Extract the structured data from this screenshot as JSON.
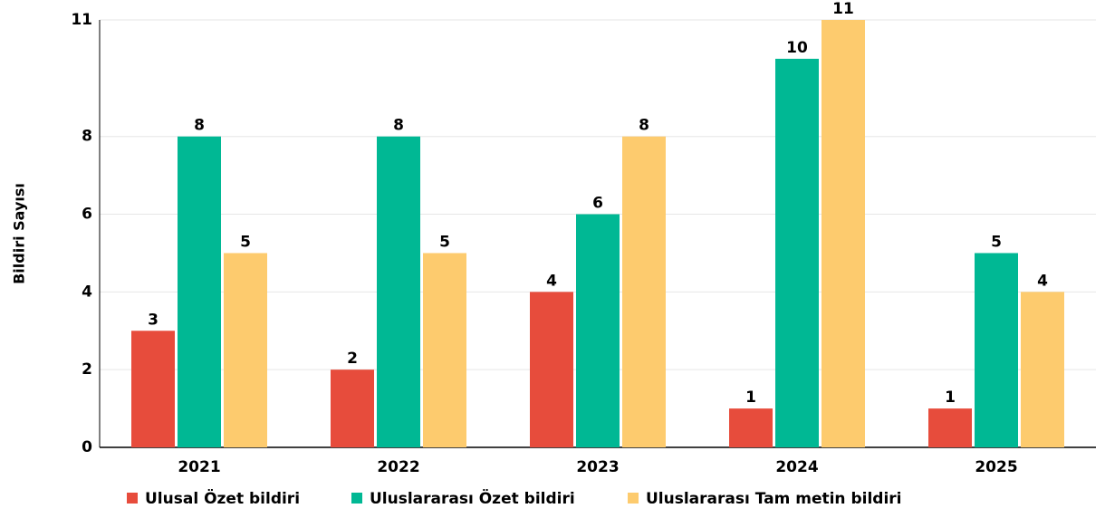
{
  "chart_data": {
    "type": "bar",
    "y_label": "Bildiri Sayısı",
    "categories": [
      "2021",
      "2022",
      "2023",
      "2024",
      "2025"
    ],
    "series": [
      {
        "name": "Ulusal Özet bildiri",
        "color": "#e74c3c",
        "values": [
          3,
          2,
          4,
          1,
          1
        ]
      },
      {
        "name": "Uluslararası Özet bildiri",
        "color": "#00b894",
        "values": [
          8,
          8,
          6,
          10,
          5
        ]
      },
      {
        "name": "Uluslararası Tam metin bildiri",
        "color": "#fdcb6e",
        "values": [
          5,
          5,
          8,
          11,
          4
        ]
      }
    ],
    "ylim": [
      0,
      11
    ],
    "yticks": [
      0,
      2,
      4,
      6,
      8,
      11
    ],
    "grid": true,
    "legend": "bottom"
  }
}
